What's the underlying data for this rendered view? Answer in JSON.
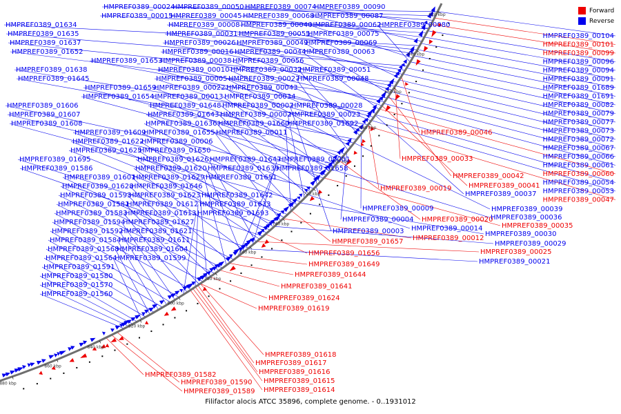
{
  "caption": "Filifactor alocis ATCC 35896, complete genome. - 0..1931012",
  "legend": [
    {
      "label": "Forward",
      "color": "#ee0000"
    },
    {
      "label": "Reverse",
      "color": "#0000ee"
    }
  ],
  "colors": {
    "forward": "#ee0000",
    "reverse": "#0000ee",
    "backbone": "#6e6e6e",
    "tick": "#000000"
  },
  "ticks": [
    "620 kbp",
    "640 kbp",
    "660 kbp",
    "680 kbp",
    "700 kbp",
    "720 kbp",
    "740 kbp",
    "760 kbp",
    "780 kbp",
    "800 kbp",
    "820 kbp",
    "840 kbp",
    "860 kbp",
    "880 kbp"
  ],
  "labels_left": [
    {
      "t": "HMPREF0389_00024",
      "s": "r"
    },
    {
      "t": "HMPREF0389_00050",
      "s": "r"
    },
    {
      "t": "HMPREF0389_00074",
      "s": "r"
    },
    {
      "t": "HMPREF0389_00090",
      "s": "r"
    },
    {
      "t": "HMPREF0389_00015",
      "s": "r"
    },
    {
      "t": "HMPREF0389_00045",
      "s": "r"
    },
    {
      "t": "HMPREF0389_00068",
      "s": "r"
    },
    {
      "t": "HMPREF0389_00087",
      "s": "r"
    },
    {
      "t": "HMPREF0389_01634",
      "s": "r"
    },
    {
      "t": "HMPREF0389_00008",
      "s": "r"
    },
    {
      "t": "HMPREF0389_00040",
      "s": "r"
    },
    {
      "t": "HMPREF0389_00062",
      "s": "r"
    },
    {
      "t": "HMPREF0389_00080",
      "s": "r"
    },
    {
      "t": "HMPREF0389_01635",
      "s": "r"
    },
    {
      "t": "HMPREF0389_00031",
      "s": "r"
    },
    {
      "t": "HMPREF0389_00055",
      "s": "r"
    },
    {
      "t": "HMPREF0389_00075",
      "s": "r"
    },
    {
      "t": "HMPREF0389_01637",
      "s": "r"
    },
    {
      "t": "HMPREF0389_00026",
      "s": "r"
    },
    {
      "t": "HMPREF0389_00049",
      "s": "r"
    },
    {
      "t": "HMPREF0389_00069",
      "s": "r"
    },
    {
      "t": "HMPREF0389_01652",
      "s": "r"
    },
    {
      "t": "HMPREF0389_00016",
      "s": "r"
    },
    {
      "t": "HMPREF0389_00044",
      "s": "r"
    },
    {
      "t": "HMPREF0389_00063",
      "s": "r"
    },
    {
      "t": "HMPREF0389_01653",
      "s": "r"
    },
    {
      "t": "HMPREF0389_00038",
      "s": "r"
    },
    {
      "t": "HMPREF0389_00056",
      "s": "r"
    },
    {
      "t": "HMPREF0389_01638",
      "s": "r"
    },
    {
      "t": "HMPREF0389_00010",
      "s": "r"
    },
    {
      "t": "HMPREF0389_00032",
      "s": "r"
    },
    {
      "t": "HMPREF0389_00051",
      "s": "r"
    },
    {
      "t": "HMPREF0389_01645",
      "s": "r"
    },
    {
      "t": "HMPREF0389_00005",
      "s": "r"
    },
    {
      "t": "HMPREF0389_00027",
      "s": "r"
    },
    {
      "t": "HMPREF0389_00048",
      "s": "r"
    },
    {
      "t": "HMPREF0389_01659",
      "s": "r"
    },
    {
      "t": "HMPREF0389_00022",
      "s": "r"
    },
    {
      "t": "HMPREF0389_00043",
      "s": "r"
    },
    {
      "t": "HMPREF0389_01654",
      "s": "r"
    },
    {
      "t": "HMPREF0389_00013",
      "s": "r"
    },
    {
      "t": "HMPREF0389_00034",
      "s": "r"
    },
    {
      "t": "HMPREF0389_01606",
      "s": "r"
    },
    {
      "t": "HMPREF0389_01648",
      "s": "r"
    },
    {
      "t": "HMPREF0389_00007",
      "s": "r"
    },
    {
      "t": "HMPREF0389_00028",
      "s": "r"
    },
    {
      "t": "HMPREF0389_01607",
      "s": "r"
    },
    {
      "t": "HMPREF0389_01643",
      "s": "r"
    },
    {
      "t": "HMPREF0389_00002",
      "s": "r"
    },
    {
      "t": "HMPREF0389_00023",
      "s": "r"
    },
    {
      "t": "HMPREF0389_01608",
      "s": "r"
    },
    {
      "t": "HMPREF0389_01636",
      "s": "r"
    },
    {
      "t": "HMPREF0389_01660",
      "s": "r"
    },
    {
      "t": "HMPREF0389_01692",
      "s": "r"
    },
    {
      "t": "HMPREF0389_01609",
      "s": "r"
    },
    {
      "t": "HMPREF0389_01655",
      "s": "r"
    },
    {
      "t": "HMPREF0389_00011",
      "s": "r"
    },
    {
      "t": "HMPREF0389_01622",
      "s": "r"
    },
    {
      "t": "HMPREF0389_00006",
      "s": "r"
    },
    {
      "t": "HMPREF0389_01625",
      "s": "r"
    },
    {
      "t": "HMPREF0389_01650",
      "s": "r"
    },
    {
      "t": "HMPREF0389_01695",
      "s": "r"
    },
    {
      "t": "HMPREF0389_01626",
      "s": "r"
    },
    {
      "t": "HMPREF0389_01647",
      "s": "r"
    },
    {
      "t": "HMPREF0389_00001",
      "s": "r"
    },
    {
      "t": "HMPREF0389_01586",
      "s": "r"
    },
    {
      "t": "HMPREF0389_01620",
      "s": "r"
    },
    {
      "t": "HMPREF0389_01639",
      "s": "r"
    },
    {
      "t": "HMPREF0389_01658",
      "s": "r"
    },
    {
      "t": "HMPREF0389_01601",
      "s": "r"
    },
    {
      "t": "HMPREF0389_01629",
      "s": "r"
    },
    {
      "t": "HMPREF0389_01651",
      "s": "r"
    },
    {
      "t": "HMPREF0389_01628",
      "s": "r"
    },
    {
      "t": "HMPREF0389_01646",
      "s": "r"
    },
    {
      "t": "HMPREF0389_01593",
      "s": "r"
    },
    {
      "t": "HMPREF0389_01623",
      "s": "r"
    },
    {
      "t": "HMPREF0389_01642",
      "s": "r"
    },
    {
      "t": "HMPREF0389_01581",
      "s": "r"
    },
    {
      "t": "HMPREF0389_01612",
      "s": "r"
    },
    {
      "t": "HMPREF0389_01633",
      "s": "r"
    },
    {
      "t": "HMPREF0389_01583",
      "s": "r"
    },
    {
      "t": "HMPREF0389_01613",
      "s": "r"
    },
    {
      "t": "HMPREF0389_01693",
      "s": "r"
    },
    {
      "t": "HMPREF0389_01594",
      "s": "r"
    },
    {
      "t": "HMPREF0389_01627",
      "s": "r"
    },
    {
      "t": "HMPREF0389_01592",
      "s": "r"
    },
    {
      "t": "HMPREF0389_01621",
      "s": "r"
    },
    {
      "t": "HMPREF0389_01584",
      "s": "r"
    },
    {
      "t": "HMPREF0389_01611",
      "s": "r"
    },
    {
      "t": "HMPREF0389_01568",
      "s": "r"
    },
    {
      "t": "HMPREF0389_01604",
      "s": "r"
    },
    {
      "t": "HMPREF0389_01564",
      "s": "r"
    },
    {
      "t": "HMPREF0389_01599",
      "s": "r"
    },
    {
      "t": "HMPREF0389_01591",
      "s": "r"
    },
    {
      "t": "HMPREF0389_01580",
      "s": "r"
    },
    {
      "t": "HMPREF0389_01570",
      "s": "r"
    },
    {
      "t": "HMPREF0389_01560",
      "s": "r"
    }
  ],
  "labels_right": [
    {
      "t": "HMPREF0389_00104",
      "s": "r"
    },
    {
      "t": "HMPREF0389_00101",
      "s": "f"
    },
    {
      "t": "HMPREF0389_00099",
      "s": "f"
    },
    {
      "t": "HMPREF0389_00096",
      "s": "r"
    },
    {
      "t": "HMPREF0389_00094",
      "s": "r"
    },
    {
      "t": "HMPREF0389_00091",
      "s": "r"
    },
    {
      "t": "HMPREF0389_01689",
      "s": "r"
    },
    {
      "t": "HMPREF0389_01691",
      "s": "r"
    },
    {
      "t": "HMPREF0389_00082",
      "s": "r"
    },
    {
      "t": "HMPREF0389_00079",
      "s": "r"
    },
    {
      "t": "HMPREF0389_00077",
      "s": "r"
    },
    {
      "t": "HMPREF0389_00073",
      "s": "r"
    },
    {
      "t": "HMPREF0389_00072",
      "s": "r"
    },
    {
      "t": "HMPREF0389_00067",
      "s": "r"
    },
    {
      "t": "HMPREF0389_00066",
      "s": "r"
    },
    {
      "t": "HMPREF0389_00061",
      "s": "r"
    },
    {
      "t": "HMPREF0389_00060",
      "s": "f"
    },
    {
      "t": "HMPREF0389_00054",
      "s": "r"
    },
    {
      "t": "HMPREF0389_00053",
      "s": "r"
    },
    {
      "t": "HMPREF0389_00047",
      "s": "f"
    }
  ],
  "labels_mid": [
    {
      "t": "HMPREF0389_00046",
      "s": "f"
    },
    {
      "t": "HMPREF0389_00033",
      "s": "f"
    },
    {
      "t": "HMPREF0389_00042",
      "s": "f"
    },
    {
      "t": "HMPREF0389_00041",
      "s": "f"
    },
    {
      "t": "HMPREF0389_00037",
      "s": "r"
    },
    {
      "t": "HMPREF0389_00019",
      "s": "f"
    },
    {
      "t": "HMPREF0389_00009",
      "s": "r"
    },
    {
      "t": "HMPREF0389_00039",
      "s": "r"
    },
    {
      "t": "HMPREF0389_00004",
      "s": "r"
    },
    {
      "t": "HMPREF0389_00020",
      "s": "f"
    },
    {
      "t": "HMPREF0389_00036",
      "s": "r"
    },
    {
      "t": "HMPREF0389_00035",
      "s": "f"
    },
    {
      "t": "HMPREF0389_00003",
      "s": "r"
    },
    {
      "t": "HMPREF0389_00014",
      "s": "r"
    },
    {
      "t": "HMPREF0389_00030",
      "s": "r"
    },
    {
      "t": "HMPREF0389_01657",
      "s": "f"
    },
    {
      "t": "HMPREF0389_00012",
      "s": "f"
    },
    {
      "t": "HMPREF0389_00029",
      "s": "r"
    },
    {
      "t": "HMPREF0389_01656",
      "s": "f"
    },
    {
      "t": "HMPREF0389_00025",
      "s": "f"
    },
    {
      "t": "HMPREF0389_00021",
      "s": "r"
    },
    {
      "t": "HMPREF0389_01649",
      "s": "f"
    },
    {
      "t": "HMPREF0389_01644",
      "s": "f"
    },
    {
      "t": "HMPREF0389_01641",
      "s": "f"
    },
    {
      "t": "HMPREF0389_01624",
      "s": "f"
    },
    {
      "t": "HMPREF0389_01619",
      "s": "f"
    }
  ],
  "labels_bottom": [
    {
      "t": "HMPREF0389_01618",
      "s": "f"
    },
    {
      "t": "HMPREF0389_01617",
      "s": "f"
    },
    {
      "t": "HMPREF0389_01616",
      "s": "f"
    },
    {
      "t": "HMPREF0389_01615",
      "s": "f"
    },
    {
      "t": "HMPREF0389_01614",
      "s": "f"
    },
    {
      "t": "HMPREF0389_01582",
      "s": "f"
    },
    {
      "t": "HMPREF0389_01590",
      "s": "f"
    },
    {
      "t": "HMPREF0389_01589",
      "s": "f"
    }
  ]
}
